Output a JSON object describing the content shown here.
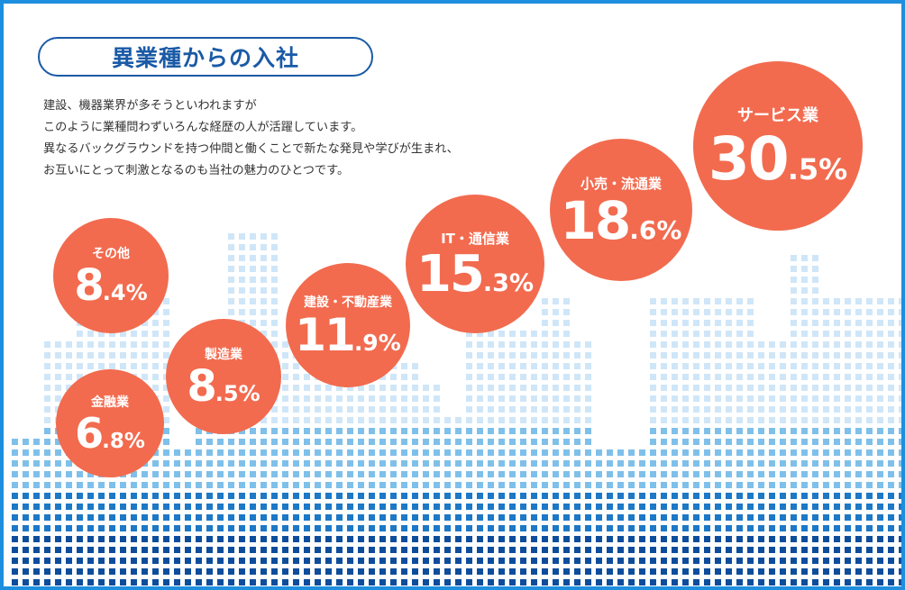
{
  "title": "異業種からの入社",
  "description": [
    "建設、機器業界が多そうといわれますが",
    "このように業種問わずいろんな経歴の人が活躍しています。",
    "異なるバックグラウンドを持つ仲間と働くことで新たな発見や学びが生まれ、",
    "お互いにとって刺激となるのも当社の魅力のひとつです。"
  ],
  "colors": {
    "border": "#1e8fde",
    "title": "#1a5aa6",
    "bubble": "#f26b4f",
    "dot_light": "#cfe6f8",
    "dot_mid": "#7fc0ea",
    "dot_dark": "#1d78c6",
    "dot_navy": "#0e4d9c"
  },
  "industries": [
    {
      "name": "その他",
      "int": "8",
      "dec": ".4%",
      "percent": 8.4
    },
    {
      "name": "金融業",
      "int": "6",
      "dec": ".8%",
      "percent": 6.8
    },
    {
      "name": "製造業",
      "int": "8",
      "dec": ".5%",
      "percent": 8.5
    },
    {
      "name": "建設・不動産業",
      "int": "11",
      "dec": ".9%",
      "percent": 11.9
    },
    {
      "name": "IT・通信業",
      "int": "15",
      "dec": ".3%",
      "percent": 15.3
    },
    {
      "name": "小売・流通業",
      "int": "18",
      "dec": ".6%",
      "percent": 18.6
    },
    {
      "name": "サービス業",
      "int": "30",
      "dec": ".5%",
      "percent": 30.5
    }
  ]
}
